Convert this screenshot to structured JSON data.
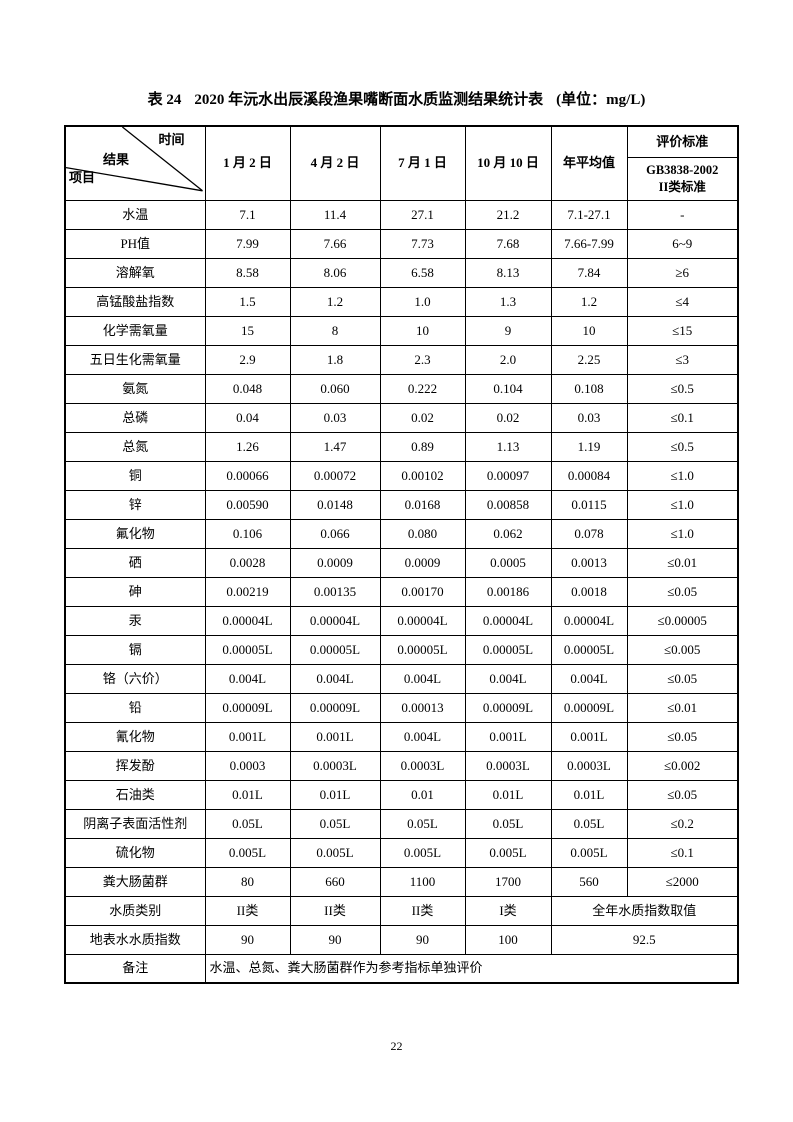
{
  "document": {
    "title": {
      "label": "表 24",
      "main": "2020 年沅水出辰溪段渔果嘴断面水质监测结果统计表",
      "unit": "(单位：mg/L)"
    },
    "page_number": "22"
  },
  "table": {
    "corner": {
      "time": "时间",
      "result": "结果",
      "item": "项目"
    },
    "column_headers": [
      "1 月 2 日",
      "4 月 2 日",
      "7 月 1 日",
      "10 月 10 日",
      "年平均值"
    ],
    "standard": {
      "header": "评价标准",
      "name": "GB3838-2002",
      "class_label": "II类标准"
    },
    "rows": [
      {
        "label": "水温",
        "cells": [
          {
            "text": "7.1"
          },
          {
            "text": "11.4"
          },
          {
            "text": "27.1"
          },
          {
            "text": "21.2"
          },
          {
            "text": "7.1-27.1"
          },
          {
            "text": "-"
          }
        ]
      },
      {
        "label": "PH值",
        "cells": [
          {
            "text": "7.99"
          },
          {
            "text": "7.66"
          },
          {
            "text": "7.73"
          },
          {
            "text": "7.68"
          },
          {
            "text": "7.66-7.99"
          },
          {
            "text": "6~9"
          }
        ]
      },
      {
        "label": "溶解氧",
        "cells": [
          {
            "text": "8.58"
          },
          {
            "text": "8.06"
          },
          {
            "text": "6.58"
          },
          {
            "text": "8.13"
          },
          {
            "text": "7.84"
          },
          {
            "text": "≥6"
          }
        ]
      },
      {
        "label": "高锰酸盐指数",
        "cells": [
          {
            "text": "1.5"
          },
          {
            "text": "1.2"
          },
          {
            "text": "1.0"
          },
          {
            "text": "1.3"
          },
          {
            "text": "1.2"
          },
          {
            "text": "≤4"
          }
        ]
      },
      {
        "label": "化学需氧量",
        "cells": [
          {
            "text": "15"
          },
          {
            "text": "8"
          },
          {
            "text": "10"
          },
          {
            "text": "9"
          },
          {
            "text": "10"
          },
          {
            "text": "≤15"
          }
        ]
      },
      {
        "label": "五日生化需氧量",
        "cells": [
          {
            "text": "2.9"
          },
          {
            "text": "1.8"
          },
          {
            "text": "2.3"
          },
          {
            "text": "2.0"
          },
          {
            "text": "2.25"
          },
          {
            "text": "≤3"
          }
        ]
      },
      {
        "label": "氨氮",
        "cells": [
          {
            "text": "0.048"
          },
          {
            "text": "0.060"
          },
          {
            "text": "0.222"
          },
          {
            "text": "0.104"
          },
          {
            "text": "0.108"
          },
          {
            "text": "≤0.5"
          }
        ]
      },
      {
        "label": "总磷",
        "cells": [
          {
            "text": "0.04"
          },
          {
            "text": "0.03"
          },
          {
            "text": "0.02"
          },
          {
            "text": "0.02"
          },
          {
            "text": "0.03"
          },
          {
            "text": "≤0.1"
          }
        ]
      },
      {
        "label": "总氮",
        "cells": [
          {
            "text": "1.26"
          },
          {
            "text": "1.47"
          },
          {
            "text": "0.89"
          },
          {
            "text": "1.13"
          },
          {
            "text": "1.19"
          },
          {
            "text": "≤0.5"
          }
        ]
      },
      {
        "label": "铜",
        "cells": [
          {
            "text": "0.00066"
          },
          {
            "text": "0.00072"
          },
          {
            "text": "0.00102"
          },
          {
            "text": "0.00097"
          },
          {
            "text": "0.00084"
          },
          {
            "text": "≤1.0"
          }
        ]
      },
      {
        "label": "锌",
        "cells": [
          {
            "text": "0.00590"
          },
          {
            "text": "0.0148"
          },
          {
            "text": "0.0168"
          },
          {
            "text": "0.00858"
          },
          {
            "text": "0.0115"
          },
          {
            "text": "≤1.0"
          }
        ]
      },
      {
        "label": "氟化物",
        "cells": [
          {
            "text": "0.106"
          },
          {
            "text": "0.066"
          },
          {
            "text": "0.080"
          },
          {
            "text": "0.062"
          },
          {
            "text": "0.078"
          },
          {
            "text": "≤1.0"
          }
        ]
      },
      {
        "label": "硒",
        "cells": [
          {
            "text": "0.0028"
          },
          {
            "text": "0.0009"
          },
          {
            "text": "0.0009"
          },
          {
            "text": "0.0005"
          },
          {
            "text": "0.0013"
          },
          {
            "text": "≤0.01"
          }
        ]
      },
      {
        "label": "砷",
        "cells": [
          {
            "text": "0.00219"
          },
          {
            "text": "0.00135"
          },
          {
            "text": "0.00170"
          },
          {
            "text": "0.00186"
          },
          {
            "text": "0.0018"
          },
          {
            "text": "≤0.05"
          }
        ]
      },
      {
        "label": "汞",
        "cells": [
          {
            "text": "0.00004L"
          },
          {
            "text": "0.00004L"
          },
          {
            "text": "0.00004L"
          },
          {
            "text": "0.00004L"
          },
          {
            "text": "0.00004L"
          },
          {
            "text": "≤0.00005"
          }
        ]
      },
      {
        "label": "镉",
        "cells": [
          {
            "text": "0.00005L"
          },
          {
            "text": "0.00005L"
          },
          {
            "text": "0.00005L"
          },
          {
            "text": "0.00005L"
          },
          {
            "text": "0.00005L"
          },
          {
            "text": "≤0.005"
          }
        ]
      },
      {
        "label": "铬（六价）",
        "cells": [
          {
            "text": "0.004L"
          },
          {
            "text": "0.004L"
          },
          {
            "text": "0.004L"
          },
          {
            "text": "0.004L"
          },
          {
            "text": "0.004L"
          },
          {
            "text": "≤0.05"
          }
        ]
      },
      {
        "label": "铅",
        "cells": [
          {
            "text": "0.00009L"
          },
          {
            "text": "0.00009L"
          },
          {
            "text": "0.00013"
          },
          {
            "text": "0.00009L"
          },
          {
            "text": "0.00009L"
          },
          {
            "text": "≤0.01"
          }
        ]
      },
      {
        "label": "氰化物",
        "cells": [
          {
            "text": "0.001L"
          },
          {
            "text": "0.001L"
          },
          {
            "text": "0.004L"
          },
          {
            "text": "0.001L"
          },
          {
            "text": "0.001L"
          },
          {
            "text": "≤0.05"
          }
        ]
      },
      {
        "label": "挥发酚",
        "cells": [
          {
            "text": "0.0003"
          },
          {
            "text": "0.0003L"
          },
          {
            "text": "0.0003L"
          },
          {
            "text": "0.0003L"
          },
          {
            "text": "0.0003L"
          },
          {
            "text": "≤0.002"
          }
        ]
      },
      {
        "label": "石油类",
        "cells": [
          {
            "text": "0.01L"
          },
          {
            "text": "0.01L"
          },
          {
            "text": "0.01"
          },
          {
            "text": "0.01L"
          },
          {
            "text": "0.01L"
          },
          {
            "text": "≤0.05"
          }
        ]
      },
      {
        "label": "阴离子表面活性剂",
        "cells": [
          {
            "text": "0.05L"
          },
          {
            "text": "0.05L"
          },
          {
            "text": "0.05L"
          },
          {
            "text": "0.05L"
          },
          {
            "text": "0.05L"
          },
          {
            "text": "≤0.2"
          }
        ]
      },
      {
        "label": "硫化物",
        "cells": [
          {
            "text": "0.005L"
          },
          {
            "text": "0.005L"
          },
          {
            "text": "0.005L"
          },
          {
            "text": "0.005L"
          },
          {
            "text": "0.005L"
          },
          {
            "text": "≤0.1"
          }
        ]
      },
      {
        "label": "粪大肠菌群",
        "cells": [
          {
            "text": "80"
          },
          {
            "text": "660"
          },
          {
            "text": "1100"
          },
          {
            "text": "1700"
          },
          {
            "text": "560"
          },
          {
            "text": "≤2000"
          }
        ]
      },
      {
        "label": "水质类别",
        "cells": [
          {
            "text": "II类"
          },
          {
            "text": "II类"
          },
          {
            "text": "II类"
          },
          {
            "text": "I类"
          },
          {
            "text": "全年水质指数取值",
            "span": 2
          }
        ]
      },
      {
        "label": "地表水水质指数",
        "cells": [
          {
            "text": "90"
          },
          {
            "text": "90"
          },
          {
            "text": "90"
          },
          {
            "text": "100"
          },
          {
            "text": "92.5",
            "span": 2
          }
        ]
      },
      {
        "label": "备注",
        "cells": [
          {
            "text": "水温、总氮、粪大肠菌群作为参考指标单独评价",
            "span": 6,
            "align": "left"
          }
        ]
      }
    ]
  }
}
